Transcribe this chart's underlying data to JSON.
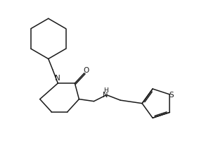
{
  "background_color": "#ffffff",
  "line_color": "#1a1a1a",
  "line_width": 1.1,
  "figsize": [
    3.0,
    2.0
  ],
  "dpi": 100,
  "xlim": [
    0.3,
    9.7
  ],
  "ylim": [
    0.2,
    6.8
  ]
}
